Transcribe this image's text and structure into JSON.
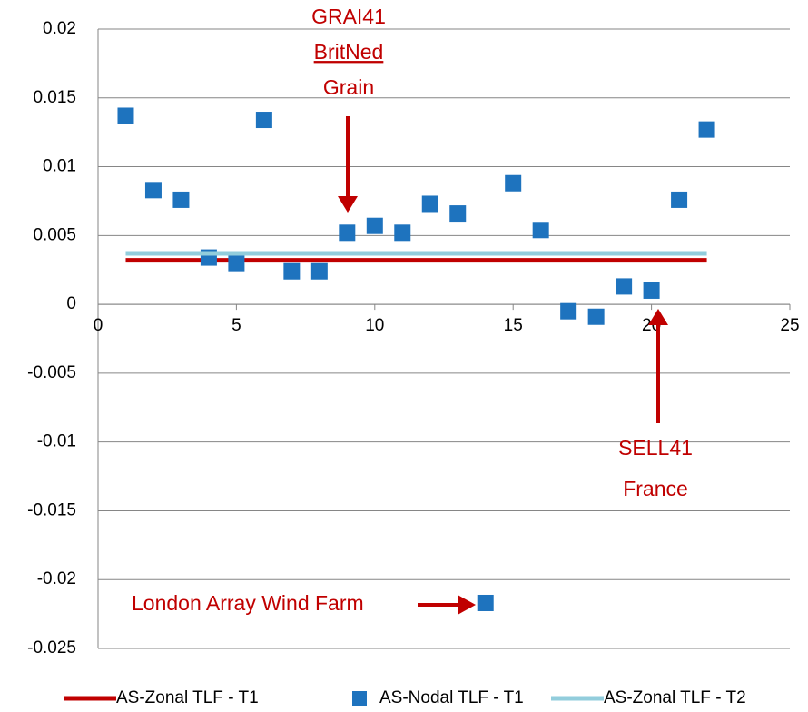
{
  "chart_data": {
    "type": "scatter",
    "series": [
      {
        "name": "AS-Zonal TLF - T1",
        "style": "line",
        "color": "#c00000",
        "x": [
          1,
          22
        ],
        "values": [
          0.0032,
          0.0032
        ]
      },
      {
        "name": "AS-Nodal TLF - T1",
        "style": "marker",
        "color": "#1e73be",
        "x": [
          1,
          2,
          3,
          4,
          5,
          6,
          7,
          8,
          9,
          10,
          11,
          12,
          13,
          14,
          15,
          16,
          17,
          18,
          19,
          20,
          21,
          22
        ],
        "values": [
          0.0137,
          0.0083,
          0.0076,
          0.0034,
          0.003,
          0.0134,
          0.0024,
          0.0024,
          0.0052,
          0.0057,
          0.0052,
          0.0073,
          0.0066,
          -0.0217,
          0.0088,
          0.0054,
          -0.0005,
          -0.0009,
          0.0013,
          0.001,
          0.0076,
          0.0127
        ]
      },
      {
        "name": "AS-Zonal TLF - T2",
        "style": "line",
        "color": "#92cddc",
        "x": [
          1,
          22
        ],
        "values": [
          0.0037,
          0.0037
        ]
      }
    ],
    "xlim": [
      0,
      25
    ],
    "xticks": [
      0,
      5,
      10,
      15,
      20,
      25
    ],
    "ylim": [
      -0.025,
      0.02
    ],
    "yticks": [
      0.02,
      0.015,
      0.01,
      0.005,
      0,
      -0.005,
      -0.01,
      -0.015,
      -0.02,
      -0.025
    ],
    "grid": true,
    "legend": "bottom",
    "annotations": [
      {
        "lines": [
          "GRAI41",
          "BritNed",
          "Grain"
        ]
      },
      {
        "lines": [
          "SELL41",
          "France"
        ]
      },
      {
        "lines": [
          "London Array Wind Farm"
        ]
      }
    ]
  }
}
